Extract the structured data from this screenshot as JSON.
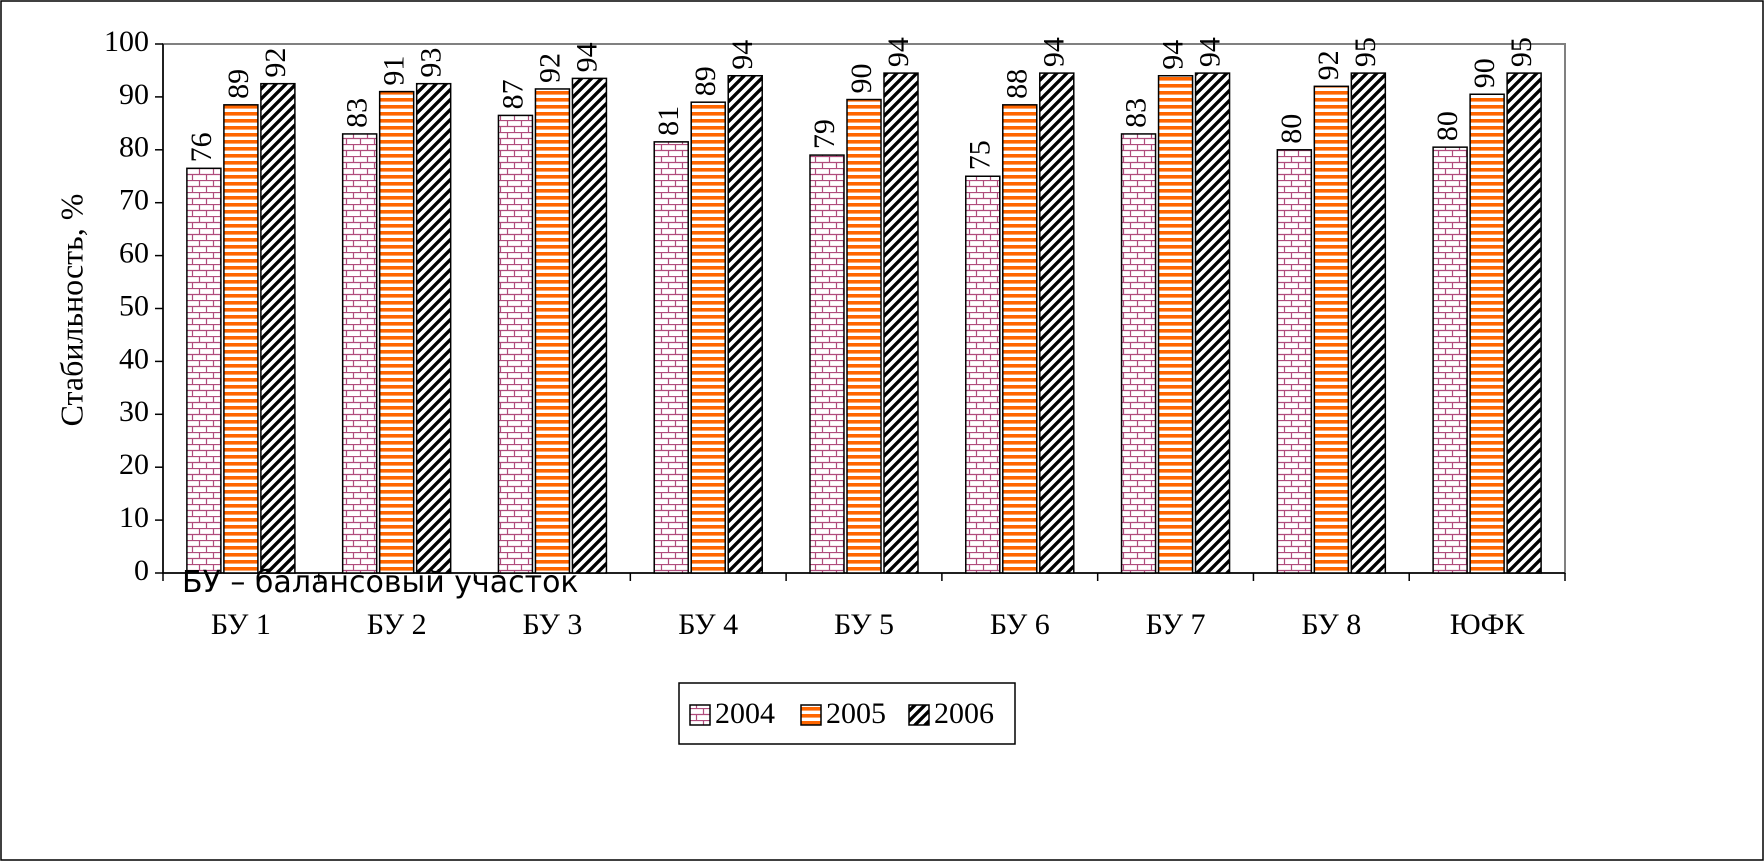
{
  "chart_data": {
    "type": "bar",
    "title": "",
    "ylabel": "Стабильность, %",
    "xlabel": "",
    "ylim": [
      0,
      100
    ],
    "yticks": [
      0,
      10,
      20,
      30,
      40,
      50,
      60,
      70,
      80,
      90,
      100
    ],
    "grid": false,
    "legend_position": "bottom",
    "categories": [
      "БУ 1",
      "БУ 2",
      "БУ 3",
      "БУ 4",
      "БУ 5",
      "БУ 6",
      "БУ 7",
      "БУ 8",
      "ЮФК"
    ],
    "series": [
      {
        "name": "2004",
        "values": [
          76.5,
          83,
          86.5,
          81.5,
          79,
          75,
          83,
          80,
          80.5
        ],
        "labels": [
          "76",
          "83",
          "87",
          "81",
          "79",
          "75",
          "83",
          "80",
          "80"
        ],
        "color": "#b04c7c",
        "pattern": "brick"
      },
      {
        "name": "2005",
        "values": [
          88.5,
          91,
          91.5,
          89,
          89.5,
          88.5,
          94,
          92,
          90.5
        ],
        "labels": [
          "89",
          "91",
          "92",
          "89",
          "90",
          "88",
          "94",
          "92",
          "90"
        ],
        "color": "#ff6600",
        "pattern": "horizontal"
      },
      {
        "name": "2006",
        "values": [
          92.5,
          92.5,
          93.5,
          94,
          94.5,
          94.5,
          94.5,
          94.5,
          94.5
        ],
        "labels": [
          "92",
          "93",
          "94",
          "94",
          "94",
          "94",
          "94",
          "95",
          "95"
        ],
        "color": "#000000",
        "pattern": "diagonal"
      }
    ],
    "annotation": "БУ – балансовый участок"
  }
}
